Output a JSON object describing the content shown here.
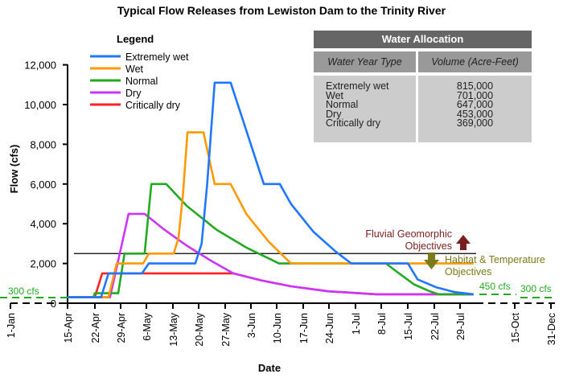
{
  "chart_data": {
    "type": "line",
    "title": "Typical Flow Releases from Lewiston Dam to the Trinity River",
    "xlabel": "Date",
    "ylabel": "Flow (cfs)",
    "x_units": "days after 15-Apr",
    "ylim": [
      0,
      12000
    ],
    "yticks": [
      0,
      2000,
      4000,
      6000,
      8000,
      10000,
      12000
    ],
    "ytick_labels": [
      "0",
      "2,000",
      "4,000",
      "6,000",
      "8,000",
      "10,000",
      "12,000"
    ],
    "xtick_labels": [
      "1-Jan",
      "15-Apr",
      "22-Apr",
      "29-Apr",
      "6-May",
      "13-May",
      "20-May",
      "27-May",
      "3-Jun",
      "10-Jun",
      "17-Jun",
      "24-Jun",
      "1-Jul",
      "8-Jul",
      "15-Jul",
      "22-Jul",
      "29-Jul",
      "15-Oct",
      "31-Dec"
    ],
    "legend_title": "Legend",
    "legend_position": "top-left",
    "series": [
      {
        "name": "Extremely wet",
        "color": "#1f77ff",
        "points": [
          [
            0,
            300
          ],
          [
            9,
            300
          ],
          [
            11,
            1500
          ],
          [
            20,
            1500
          ],
          [
            21.8,
            2000
          ],
          [
            34.3,
            2000
          ],
          [
            36,
            3000
          ],
          [
            37.5,
            6000
          ],
          [
            39.5,
            11100
          ],
          [
            43.8,
            11100
          ],
          [
            52.7,
            6000
          ],
          [
            57,
            6000
          ],
          [
            60,
            5000
          ],
          [
            66,
            3600
          ],
          [
            72,
            2600
          ],
          [
            76.2,
            2000
          ],
          [
            91.4,
            2000
          ],
          [
            94,
            1200
          ],
          [
            99,
            800
          ],
          [
            104,
            560
          ],
          [
            109,
            450
          ]
        ]
      },
      {
        "name": "Wet",
        "color": "#ff9900",
        "points": [
          [
            0,
            300
          ],
          [
            11,
            300
          ],
          [
            13.2,
            2000
          ],
          [
            20.3,
            2000
          ],
          [
            21.8,
            2500
          ],
          [
            28.5,
            2500
          ],
          [
            29.8,
            3300
          ],
          [
            31,
            5500
          ],
          [
            32.2,
            8600
          ],
          [
            36.5,
            8600
          ],
          [
            39.5,
            6000
          ],
          [
            43.8,
            6000
          ],
          [
            48,
            4500
          ],
          [
            54,
            3100
          ],
          [
            60,
            2000
          ],
          [
            109,
            2000
          ]
        ]
      },
      {
        "name": "Normal",
        "color": "#22aa22",
        "points": [
          [
            0,
            300
          ],
          [
            7,
            300
          ],
          [
            7.3,
            500
          ],
          [
            13.6,
            500
          ],
          [
            15.3,
            2500
          ],
          [
            20.7,
            2500
          ],
          [
            22.5,
            6000
          ],
          [
            26.5,
            6000
          ],
          [
            32,
            4900
          ],
          [
            40,
            3700
          ],
          [
            48,
            2800
          ],
          [
            56.8,
            2000
          ],
          [
            85.5,
            2000
          ],
          [
            89,
            1500
          ],
          [
            93,
            950
          ],
          [
            97,
            620
          ],
          [
            99.6,
            450
          ],
          [
            109,
            450
          ]
        ]
      },
      {
        "name": "Dry",
        "color": "#cc33ff",
        "points": [
          [
            0,
            300
          ],
          [
            11.4,
            300
          ],
          [
            16.4,
            4500
          ],
          [
            20.7,
            4500
          ],
          [
            26,
            3700
          ],
          [
            32,
            2900
          ],
          [
            38,
            2200
          ],
          [
            44.5,
            1500
          ],
          [
            52,
            1150
          ],
          [
            60,
            850
          ],
          [
            70,
            600
          ],
          [
            83,
            450
          ],
          [
            109,
            450
          ]
        ]
      },
      {
        "name": "Critically dry",
        "color": "#ff2222",
        "points": [
          [
            0,
            300
          ],
          [
            7.3,
            300
          ],
          [
            9.3,
            1500
          ],
          [
            44.5,
            1500
          ],
          [
            52,
            1150
          ],
          [
            60,
            850
          ],
          [
            70,
            600
          ],
          [
            83,
            450
          ],
          [
            109,
            450
          ]
        ]
      }
    ],
    "reference_line": {
      "value": 2500
    },
    "annotations": {
      "fluvial": [
        "Fluvial Geomorphic",
        "Objectives"
      ],
      "habitat": [
        "Habitat & Temperature",
        "Objectives"
      ],
      "left_base": "300 cfs",
      "right_450": "450 cfs",
      "right_300": "300 cfs"
    },
    "colors": {
      "fluvial": "#7a1f1f",
      "habitat": "#7a7a1a",
      "base": "#22aa22"
    }
  },
  "table": {
    "title": "Water Allocation",
    "headers": [
      "Water Year Type",
      "Volume (Acre-Feet)"
    ],
    "rows": [
      [
        "Extremely wet",
        "815,000"
      ],
      [
        "Wet",
        "701,000"
      ],
      [
        "Normal",
        "647,000"
      ],
      [
        "Dry",
        "453,000"
      ],
      [
        "Critically dry",
        "369,000"
      ]
    ]
  }
}
